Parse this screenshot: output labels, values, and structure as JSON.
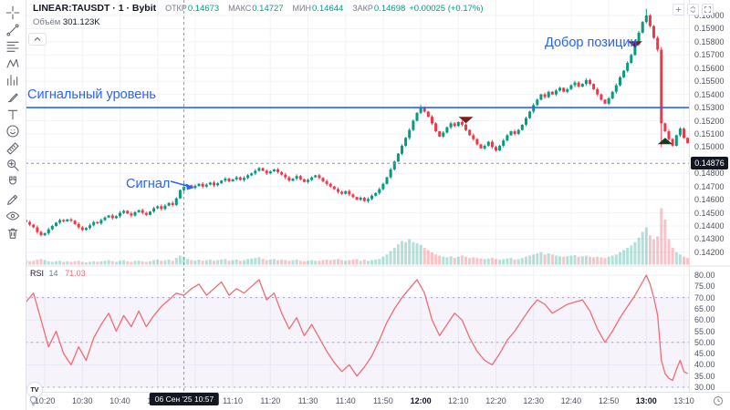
{
  "header": {
    "symbol": "LINEAR:TAUSDT · 1 · Bybit",
    "fields": [
      {
        "label": "ОТКР",
        "value": "0.14673"
      },
      {
        "label": "МАКС",
        "value": "0.14727"
      },
      {
        "label": "МИН",
        "value": "0.14644"
      },
      {
        "label": "ЗАКР",
        "value": "0.14698"
      }
    ],
    "change": "+0.00025 (+0.17%)",
    "volume_label": "Объём",
    "volume_value": "301.123K"
  },
  "annotations": {
    "signal_level": "Сигнальный уровень",
    "signal": "Сигнал",
    "add_position": "Добор позиции"
  },
  "toolbar_icons": [
    "crosshair-icon",
    "trend-line-icon",
    "fib-retracement-icon",
    "xabcd-pattern-icon",
    "forecast-icon",
    "brush-icon",
    "text-icon",
    "emoji-icon",
    "measure-ruler-icon",
    "zoom-in-icon",
    "magnet-icon",
    "drawing-lock-icon",
    "hide-drawings-icon",
    "trash-icon"
  ],
  "pane_buttons": [
    "plus-icon",
    "collapse-panes-icon",
    "maximize-pane-icon"
  ],
  "price_scale": {
    "labels": [
      0.16,
      0.159,
      0.158,
      0.157,
      0.156,
      0.155,
      0.154,
      0.153,
      0.152,
      0.151,
      0.15,
      0.149,
      0.148,
      0.147,
      0.146,
      0.145,
      0.144,
      0.143,
      0.142
    ],
    "crosshair_price": "0.14876"
  },
  "rsi_panel": {
    "title": "RSI",
    "length": "14",
    "value": "71.03",
    "scale": [
      80,
      75,
      70,
      65,
      60,
      55,
      50,
      45,
      40,
      35,
      30
    ],
    "levels": [
      70,
      50,
      30
    ]
  },
  "time_axis": {
    "ticks": [
      [
        "10:20",
        5,
        0
      ],
      [
        "10:30",
        15,
        0
      ],
      [
        "10:40",
        25,
        0
      ],
      [
        "10:50",
        35,
        0
      ],
      [
        "11:00",
        45,
        1
      ],
      [
        "11:10",
        55,
        0
      ],
      [
        "11:20",
        65,
        0
      ],
      [
        "11:30",
        75,
        0
      ],
      [
        "11:40",
        85,
        0
      ],
      [
        "11:50",
        95,
        0
      ],
      [
        "12:00",
        105,
        1
      ],
      [
        "12:10",
        115,
        0
      ],
      [
        "12:20",
        125,
        0
      ],
      [
        "12:30",
        135,
        0
      ],
      [
        "12:40",
        145,
        0
      ],
      [
        "12:50",
        155,
        0
      ],
      [
        "13:00",
        165,
        1
      ],
      [
        "13:10",
        175,
        0
      ]
    ],
    "tooltip": "06 Сен '25   10:57"
  },
  "watermark": "TV",
  "colors": {
    "up": "#089981",
    "down": "#f23645",
    "vol_up": "rgba(8,153,129,0.30)",
    "vol_down": "rgba(242,54,69,0.30)",
    "accent_blue": "#2962ff",
    "grid": "#f0f3fa",
    "axis_border": "#e0e3eb",
    "text_dark": "#131722",
    "text_gray": "#787b86",
    "rsi_line": "#f26b73",
    "rsi_band": "#7e57c2",
    "rsi_dash": "#ab9cd4",
    "crosshair": "#9598a1",
    "badge_bg": "#131722",
    "marker_down": "#7e1d17",
    "marker_up": "#123b22",
    "toolbar_icon": "#5d606b"
  },
  "chart_data": {
    "type": "candlestick",
    "symbol": "LINEAR:TAUSDT",
    "exchange": "Bybit",
    "interval": "1m",
    "date": "06 Сен '25",
    "start_time": "10:15",
    "end_time": "13:11",
    "price_scale_unit": 1e-05,
    "signal_level": 0.153,
    "closes": [
      14430,
      14410,
      14390,
      14355,
      14330,
      14345,
      14375,
      14400,
      14425,
      14445,
      14435,
      14450,
      14440,
      14415,
      14390,
      14370,
      14385,
      14405,
      14430,
      14420,
      14445,
      14465,
      14480,
      14460,
      14475,
      14500,
      14515,
      14495,
      14480,
      14505,
      14520,
      14500,
      14485,
      14510,
      14535,
      14550,
      14530,
      14555,
      14575,
      14560,
      14610,
      14673,
      14698,
      14710,
      14690,
      14705,
      14720,
      14700,
      14715,
      14730,
      14710,
      14725,
      14745,
      14760,
      14740,
      14755,
      14770,
      14750,
      14765,
      14785,
      14800,
      14820,
      14840,
      14820,
      14800,
      14815,
      14830,
      14810,
      14790,
      14770,
      14745,
      14760,
      14780,
      14755,
      14735,
      14750,
      14770,
      14785,
      14765,
      14740,
      14720,
      14700,
      14680,
      14660,
      14645,
      14665,
      14640,
      14620,
      14600,
      14615,
      14590,
      14605,
      14630,
      14650,
      14680,
      14720,
      14770,
      14830,
      14890,
      14950,
      15010,
      15070,
      15130,
      15200,
      15260,
      15300,
      15270,
      15230,
      15180,
      15120,
      15080,
      15110,
      15150,
      15180,
      15160,
      15190,
      15170,
      15130,
      15090,
      15060,
      15020,
      14990,
      15010,
      15040,
      15000,
      14975,
      15010,
      15050,
      15090,
      15120,
      15100,
      15130,
      15170,
      15220,
      15270,
      15320,
      15360,
      15400,
      15380,
      15420,
      15400,
      15430,
      15450,
      15420,
      15440,
      15470,
      15490,
      15460,
      15480,
      15510,
      15480,
      15440,
      15400,
      15360,
      15330,
      15370,
      15420,
      15470,
      15530,
      15580,
      15640,
      15700,
      15780,
      15870,
      15950,
      16000,
      15920,
      15830,
      15740,
      15180,
      15120,
      15060,
      15010,
      15090,
      15140,
      15070,
      15030
    ],
    "ohlc_overrides": {
      "42": [
        14673,
        14727,
        14644,
        14698
      ],
      "105": [
        15260,
        15320,
        15250,
        15300
      ],
      "165": [
        15950,
        16050,
        15940,
        16000
      ],
      "169": [
        15740,
        15760,
        15000,
        15180
      ]
    },
    "volumes": [
      8,
      6,
      7,
      9,
      10,
      8,
      6,
      5,
      6,
      7,
      5,
      6,
      5,
      6,
      7,
      5,
      4,
      5,
      6,
      5,
      6,
      7,
      8,
      6,
      5,
      7,
      8,
      6,
      5,
      7,
      7,
      6,
      5,
      6,
      8,
      9,
      7,
      8,
      9,
      7,
      12,
      16,
      14,
      10,
      8,
      7,
      9,
      7,
      8,
      9,
      7,
      8,
      9,
      10,
      7,
      8,
      9,
      7,
      8,
      10,
      11,
      12,
      13,
      10,
      8,
      9,
      10,
      8,
      9,
      8,
      7,
      8,
      9,
      7,
      6,
      7,
      8,
      7,
      7,
      8,
      9,
      8,
      9,
      10,
      8,
      7,
      8,
      9,
      10,
      7,
      9,
      7,
      8,
      9,
      10,
      14,
      18,
      24,
      30,
      36,
      42,
      40,
      45,
      40,
      38,
      35,
      30,
      26,
      22,
      18,
      16,
      14,
      13,
      15,
      12,
      14,
      16,
      14,
      12,
      13,
      12,
      11,
      10,
      11,
      12,
      10,
      9,
      10,
      11,
      12,
      9,
      10,
      12,
      14,
      16,
      18,
      20,
      22,
      18,
      20,
      18,
      16,
      15,
      14,
      15,
      16,
      17,
      14,
      15,
      16,
      14,
      13,
      14,
      13,
      12,
      14,
      16,
      18,
      22,
      26,
      30,
      34,
      40,
      48,
      58,
      66,
      52,
      45,
      50,
      100,
      80,
      45,
      30,
      22,
      18,
      14,
      12
    ],
    "rsi_points": [
      [
        0,
        68
      ],
      [
        2,
        72
      ],
      [
        4,
        60
      ],
      [
        6,
        48
      ],
      [
        8,
        55
      ],
      [
        10,
        45
      ],
      [
        12,
        40
      ],
      [
        14,
        48
      ],
      [
        16,
        42
      ],
      [
        18,
        52
      ],
      [
        20,
        58
      ],
      [
        22,
        63
      ],
      [
        24,
        55
      ],
      [
        26,
        62
      ],
      [
        28,
        57
      ],
      [
        30,
        64
      ],
      [
        32,
        57
      ],
      [
        34,
        62
      ],
      [
        36,
        66
      ],
      [
        38,
        69
      ],
      [
        40,
        72
      ],
      [
        42,
        71
      ],
      [
        44,
        74
      ],
      [
        46,
        76
      ],
      [
        48,
        71
      ],
      [
        50,
        74
      ],
      [
        52,
        77
      ],
      [
        54,
        71
      ],
      [
        56,
        74
      ],
      [
        58,
        72
      ],
      [
        60,
        75
      ],
      [
        62,
        78
      ],
      [
        64,
        69
      ],
      [
        66,
        72
      ],
      [
        68,
        63
      ],
      [
        70,
        56
      ],
      [
        72,
        61
      ],
      [
        74,
        53
      ],
      [
        76,
        58
      ],
      [
        78,
        52
      ],
      [
        80,
        46
      ],
      [
        82,
        41
      ],
      [
        84,
        37
      ],
      [
        86,
        40
      ],
      [
        88,
        35
      ],
      [
        90,
        39
      ],
      [
        92,
        44
      ],
      [
        94,
        51
      ],
      [
        96,
        59
      ],
      [
        98,
        65
      ],
      [
        100,
        70
      ],
      [
        102,
        74
      ],
      [
        104,
        78
      ],
      [
        106,
        72
      ],
      [
        108,
        60
      ],
      [
        110,
        53
      ],
      [
        112,
        58
      ],
      [
        114,
        63
      ],
      [
        116,
        60
      ],
      [
        118,
        52
      ],
      [
        120,
        46
      ],
      [
        122,
        42
      ],
      [
        124,
        40
      ],
      [
        126,
        45
      ],
      [
        128,
        51
      ],
      [
        130,
        55
      ],
      [
        132,
        60
      ],
      [
        134,
        65
      ],
      [
        136,
        69
      ],
      [
        138,
        67
      ],
      [
        140,
        63
      ],
      [
        142,
        65
      ],
      [
        144,
        67
      ],
      [
        146,
        68
      ],
      [
        148,
        69
      ],
      [
        150,
        64
      ],
      [
        152,
        56
      ],
      [
        154,
        50
      ],
      [
        156,
        55
      ],
      [
        158,
        61
      ],
      [
        160,
        66
      ],
      [
        162,
        71
      ],
      [
        164,
        77
      ],
      [
        165,
        80
      ],
      [
        166,
        76
      ],
      [
        167,
        70
      ],
      [
        168,
        62
      ],
      [
        169,
        42
      ],
      [
        170,
        36
      ],
      [
        171,
        34
      ],
      [
        172,
        33
      ],
      [
        173,
        38
      ],
      [
        174,
        42
      ],
      [
        175,
        37
      ],
      [
        176,
        36
      ]
    ],
    "markers": [
      {
        "i": 117,
        "time": "12:12",
        "price": 0.1523,
        "dir": "down"
      },
      {
        "i": 162,
        "time": "12:57",
        "price": 0.15805,
        "dir": "down"
      },
      {
        "i": 170,
        "time": "13:05",
        "price": 0.1507,
        "dir": "up"
      }
    ],
    "hovered_candle": {
      "time": "10:57",
      "open": 0.14673,
      "high": 0.14727,
      "low": 0.14644,
      "close": 0.14698,
      "volume": "301.123K",
      "rsi": 71.03
    },
    "crosshair": {
      "i": 42,
      "price": 0.14876
    }
  }
}
